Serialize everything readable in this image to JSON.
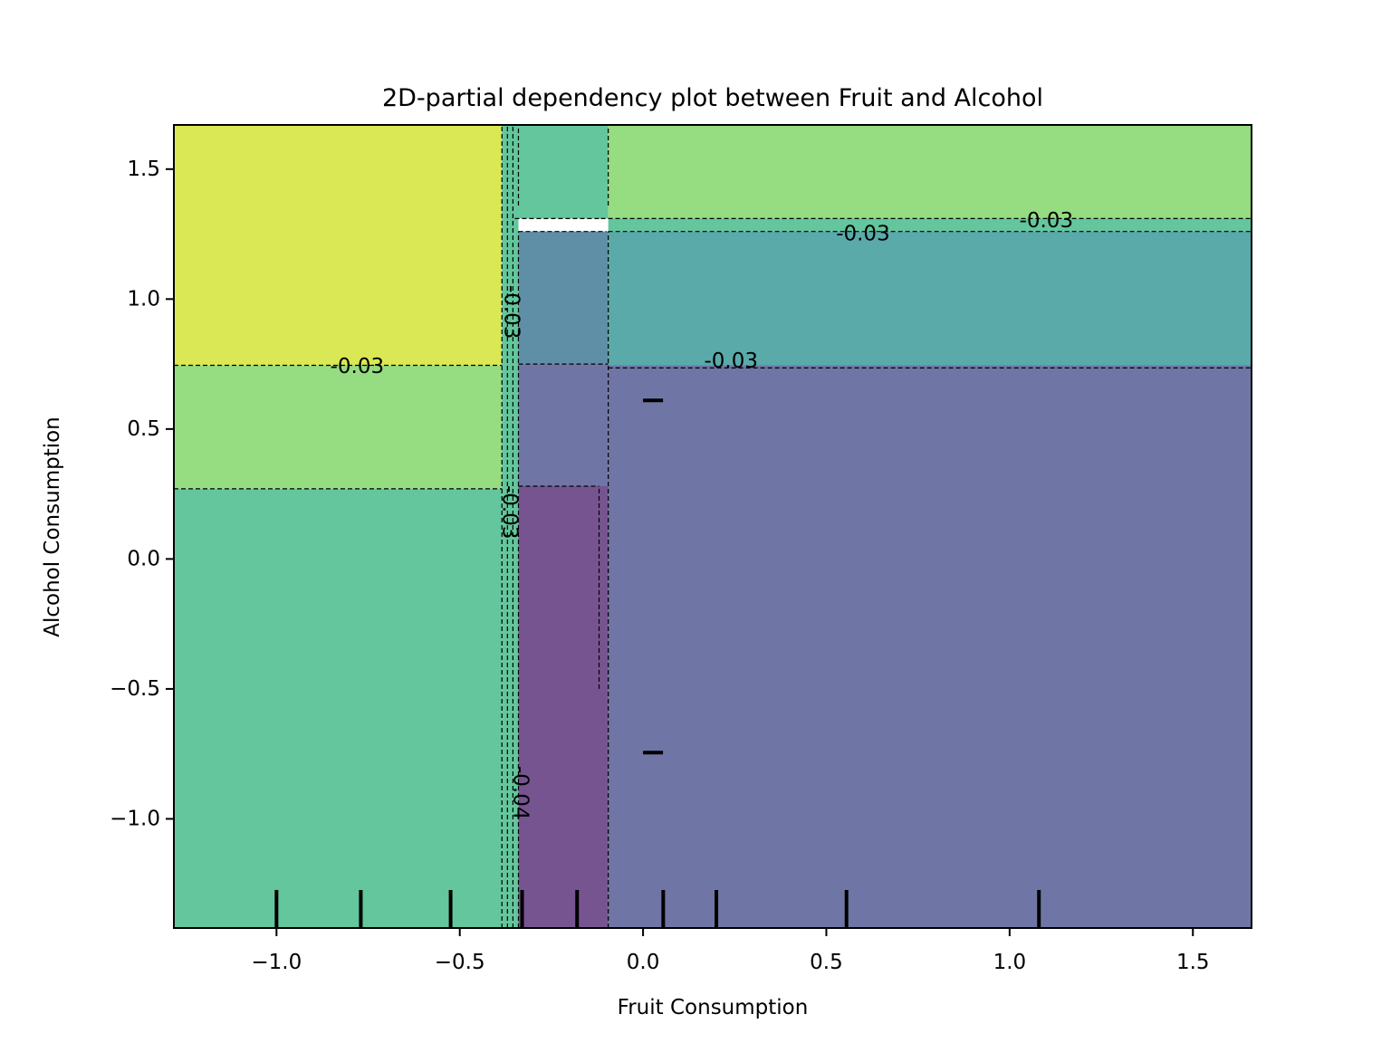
{
  "chart_data": {
    "type": "heatmap",
    "subtype": "2D partial dependence filled contour",
    "title": "2D-partial dependency plot between Fruit and Alcohol",
    "xlabel": "Fruit Consumption",
    "ylabel": "Alcohol Consumption",
    "xlim": [
      -1.28,
      1.66
    ],
    "ylim": [
      -1.42,
      1.67
    ],
    "xticks": [
      -1.0,
      -0.5,
      0.0,
      0.5,
      1.0,
      1.5
    ],
    "xtick_labels": [
      "−1.0",
      "−0.5",
      "0.0",
      "0.5",
      "1.0",
      "1.5"
    ],
    "yticks": [
      -1.0,
      -0.5,
      0.0,
      0.5,
      1.0,
      1.5
    ],
    "ytick_labels": [
      "−1.0",
      "−0.5",
      "0.0",
      "0.5",
      "1.0",
      "1.5"
    ],
    "grid": false,
    "colormap": "viridis (alpha ~0.75)",
    "regions": [
      {
        "x": [
          -1.28,
          -0.385
        ],
        "y": [
          0.745,
          1.67
        ],
        "color": "#dae855"
      },
      {
        "x": [
          -1.28,
          -0.385
        ],
        "y": [
          0.27,
          0.745
        ],
        "color": "#96dc80"
      },
      {
        "x": [
          -1.28,
          -0.385
        ],
        "y": [
          -1.42,
          0.27
        ],
        "color": "#63c69d"
      },
      {
        "x": [
          -0.385,
          -0.34
        ],
        "y": [
          -1.42,
          1.67
        ],
        "color": "#63c69d"
      },
      {
        "x": [
          -0.34,
          -0.095
        ],
        "y": [
          1.31,
          1.67
        ],
        "color": "#63c69d"
      },
      {
        "x": [
          -0.34,
          -0.095
        ],
        "y": [
          0.75,
          1.26
        ],
        "color": "#5f8fa6"
      },
      {
        "x": [
          -0.34,
          -0.095
        ],
        "y": [
          0.28,
          0.75
        ],
        "color": "#6f76a6"
      },
      {
        "x": [
          -0.34,
          -0.095
        ],
        "y": [
          -1.42,
          0.28
        ],
        "color": "#765490"
      },
      {
        "x": [
          -0.095,
          1.66
        ],
        "y": [
          1.31,
          1.67
        ],
        "color": "#96dc80"
      },
      {
        "x": [
          -0.095,
          1.66
        ],
        "y": [
          1.26,
          1.31
        ],
        "color": "#63c69d"
      },
      {
        "x": [
          -0.095,
          1.66
        ],
        "y": [
          0.745,
          1.26
        ],
        "color": "#5aaaaa"
      },
      {
        "x": [
          -0.095,
          1.66
        ],
        "y": [
          -1.42,
          0.745
        ],
        "color": "#6f76a6"
      }
    ],
    "contour_lines": [
      {
        "orientation": "horizontal",
        "level": 0.745,
        "x": [
          -1.28,
          -0.385
        ]
      },
      {
        "orientation": "horizontal",
        "level": 0.27,
        "x": [
          -1.28,
          -0.385
        ]
      },
      {
        "orientation": "horizontal",
        "level": 1.31,
        "x": [
          -0.115,
          1.66
        ]
      },
      {
        "orientation": "horizontal",
        "level": 1.26,
        "x": [
          -0.095,
          1.66
        ]
      },
      {
        "orientation": "horizontal",
        "level": 0.75,
        "x": [
          -0.34,
          -0.095
        ]
      },
      {
        "orientation": "horizontal",
        "level": 0.735,
        "x": [
          -0.095,
          1.66
        ]
      },
      {
        "orientation": "horizontal",
        "level": 0.28,
        "x": [
          -0.34,
          -0.12
        ]
      },
      {
        "orientation": "horizontal",
        "level": 1.31,
        "x": [
          -0.35,
          -0.12
        ]
      },
      {
        "orientation": "horizontal",
        "level": 1.26,
        "x": [
          -0.34,
          -0.1
        ]
      },
      {
        "orientation": "vertical",
        "level": -0.385,
        "y": [
          -1.42,
          1.67
        ]
      },
      {
        "orientation": "vertical",
        "level": -0.37,
        "y": [
          -1.42,
          1.67
        ]
      },
      {
        "orientation": "vertical",
        "level": -0.355,
        "y": [
          -1.42,
          1.67
        ]
      },
      {
        "orientation": "vertical",
        "level": -0.34,
        "y": [
          -1.42,
          1.26
        ]
      },
      {
        "orientation": "vertical",
        "level": -0.095,
        "y": [
          -1.42,
          1.26
        ]
      },
      {
        "orientation": "vertical",
        "level": -0.12,
        "y": [
          -0.5,
          0.28
        ]
      },
      {
        "orientation": "vertical",
        "level": -0.095,
        "y": [
          1.36,
          1.67
        ]
      },
      {
        "orientation": "vertical",
        "level": -0.34,
        "y": [
          1.36,
          1.67
        ]
      }
    ],
    "contour_labels": [
      {
        "text": "-0.03",
        "x": -0.78,
        "y": 0.74,
        "rotation": 0
      },
      {
        "text": "-0.03",
        "x": 0.24,
        "y": 0.76,
        "rotation": 0
      },
      {
        "text": "-0.03",
        "x": 0.6,
        "y": 1.25,
        "rotation": 0
      },
      {
        "text": "-0.03",
        "x": 1.1,
        "y": 1.3,
        "rotation": 0
      },
      {
        "text": "-0.03",
        "x": -0.36,
        "y": 0.95,
        "rotation": 90
      },
      {
        "text": "-0.03",
        "x": -0.365,
        "y": 0.18,
        "rotation": 90
      },
      {
        "text": "-0.04",
        "x": -0.335,
        "y": -0.9,
        "rotation": 90
      }
    ],
    "rug_x": [
      -1.0,
      -0.77,
      -0.525,
      -0.33,
      -0.18,
      0.055,
      0.2,
      0.555,
      1.08
    ],
    "rug_y": [
      0.61,
      -0.745
    ]
  }
}
